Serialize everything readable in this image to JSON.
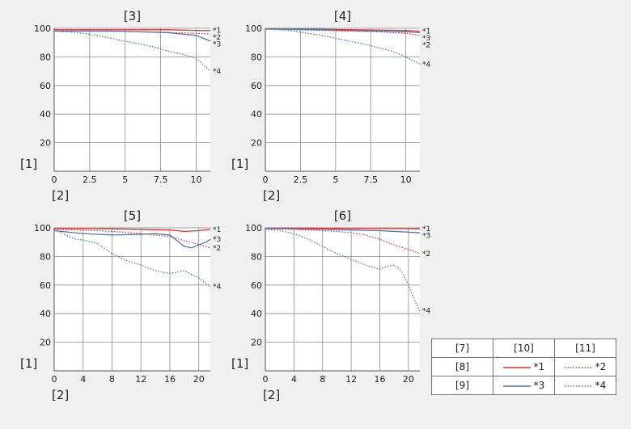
{
  "chart_data": [
    {
      "type": "line",
      "title": "[3]",
      "ylabel": "[1]",
      "xlabel": "[2]",
      "xlim": [
        0,
        11
      ],
      "ylim": [
        0,
        100
      ],
      "xticks": [
        0,
        2.5,
        5,
        7.5,
        10
      ],
      "xtick_labels": [
        "0",
        "2.5",
        "5",
        "7.5",
        "10"
      ],
      "yticks": [
        20,
        40,
        60,
        80,
        100
      ],
      "ytick_labels": [
        "20",
        "40",
        "60",
        "80",
        "100"
      ],
      "grid": true,
      "series": [
        {
          "name": "*1",
          "color": "#e03030",
          "dash": "solid",
          "x": [
            0,
            2,
            4,
            6,
            8,
            10,
            11
          ],
          "y": [
            99,
            99,
            99,
            99,
            99,
            98.5,
            98.5
          ]
        },
        {
          "name": "*2",
          "color": "#e03030",
          "dash": "dotted",
          "x": [
            0,
            2,
            4,
            6,
            8,
            10,
            11
          ],
          "y": [
            98,
            98,
            98,
            97.5,
            97,
            96.5,
            96
          ]
        },
        {
          "name": "*3",
          "color": "#4a73b0",
          "dash": "solid",
          "x": [
            0,
            2,
            4,
            6,
            8,
            9,
            10,
            11
          ],
          "y": [
            98,
            98,
            98,
            97.5,
            97,
            96,
            95,
            91
          ]
        },
        {
          "name": "*4",
          "color": "#4a73b0",
          "dash": "dotted",
          "x": [
            0,
            1,
            2,
            3,
            4,
            5,
            6,
            7,
            8,
            9,
            10,
            11
          ],
          "y": [
            98,
            97.5,
            96.5,
            95,
            93,
            91,
            89,
            87,
            84,
            82,
            79,
            70
          ]
        }
      ]
    },
    {
      "type": "line",
      "title": "[4]",
      "ylabel": "[1]",
      "xlabel": "[2]",
      "xlim": [
        0,
        11
      ],
      "ylim": [
        0,
        100
      ],
      "xticks": [
        0,
        2.5,
        5,
        7.5,
        10
      ],
      "xtick_labels": [
        "0",
        "2.5",
        "5",
        "7.5",
        "10"
      ],
      "yticks": [
        20,
        40,
        60,
        80,
        100
      ],
      "ytick_labels": [
        "20",
        "40",
        "60",
        "80",
        "100"
      ],
      "grid": true,
      "series": [
        {
          "name": "*1",
          "color": "#e03030",
          "dash": "solid",
          "x": [
            0,
            2,
            4,
            6,
            8,
            10,
            11
          ],
          "y": [
            99.5,
            99.5,
            99.3,
            99,
            98.8,
            98.5,
            98
          ]
        },
        {
          "name": "*2",
          "color": "#e03030",
          "dash": "dotted",
          "x": [
            0,
            2,
            4,
            6,
            8,
            10,
            11
          ],
          "y": [
            99.5,
            99,
            98.5,
            98,
            97.5,
            96.5,
            95
          ]
        },
        {
          "name": "*3",
          "color": "#4a73b0",
          "dash": "solid",
          "x": [
            0,
            2,
            4,
            6,
            8,
            10,
            11
          ],
          "y": [
            99.5,
            99.3,
            99,
            98.5,
            98,
            97.5,
            97
          ]
        },
        {
          "name": "*4",
          "color": "#4a73b0",
          "dash": "dotted",
          "x": [
            0,
            1,
            2,
            3,
            4,
            5,
            6,
            7,
            8,
            9,
            10,
            11
          ],
          "y": [
            99.5,
            99,
            98,
            96.5,
            95,
            93,
            91,
            89,
            86.5,
            84,
            80,
            75
          ]
        }
      ]
    },
    {
      "type": "line",
      "title": "[5]",
      "ylabel": "[1]",
      "xlabel": "[2]",
      "xlim": [
        0,
        21.6
      ],
      "ylim": [
        0,
        100
      ],
      "xticks": [
        0,
        4,
        8,
        12,
        16,
        20
      ],
      "xtick_labels": [
        "0",
        "4",
        "8",
        "12",
        "16",
        "20"
      ],
      "yticks": [
        20,
        40,
        60,
        80,
        100
      ],
      "ytick_labels": [
        "20",
        "40",
        "60",
        "80",
        "100"
      ],
      "grid": true,
      "series": [
        {
          "name": "*1",
          "color": "#e03030",
          "dash": "solid",
          "x": [
            0,
            4,
            8,
            12,
            16,
            18,
            20,
            21.6
          ],
          "y": [
            99.5,
            99.5,
            99.3,
            99,
            98.5,
            97.5,
            98,
            99
          ]
        },
        {
          "name": "*2",
          "color": "#e03030",
          "dash": "dotted",
          "x": [
            0,
            4,
            8,
            12,
            16,
            18,
            20,
            21.6
          ],
          "y": [
            99,
            98.5,
            97.5,
            96,
            94,
            91,
            88.5,
            86
          ]
        },
        {
          "name": "*3",
          "color": "#4a73b0",
          "dash": "solid",
          "x": [
            0,
            4,
            8,
            12,
            14,
            16,
            17,
            18,
            19,
            20,
            21,
            21.6
          ],
          "y": [
            98,
            96,
            95,
            95.5,
            96,
            95,
            91,
            87,
            86,
            88,
            90,
            92
          ]
        },
        {
          "name": "*4",
          "color": "#4a73b0",
          "dash": "dotted",
          "x": [
            0,
            2,
            3,
            4,
            6,
            8,
            10,
            12,
            14,
            16,
            18,
            20,
            21.6
          ],
          "y": [
            99,
            94,
            92,
            91.5,
            89,
            82,
            77,
            74,
            70,
            68,
            70,
            65,
            59
          ]
        }
      ]
    },
    {
      "type": "line",
      "title": "[6]",
      "ylabel": "[1]",
      "xlabel": "[2]",
      "xlim": [
        0,
        21.6
      ],
      "ylim": [
        0,
        100
      ],
      "xticks": [
        0,
        4,
        8,
        12,
        16,
        20
      ],
      "xtick_labels": [
        "0",
        "4",
        "8",
        "12",
        "16",
        "20"
      ],
      "yticks": [
        20,
        40,
        60,
        80,
        100
      ],
      "ytick_labels": [
        "20",
        "40",
        "60",
        "80",
        "100"
      ],
      "grid": true,
      "series": [
        {
          "name": "*1",
          "color": "#e03030",
          "dash": "solid",
          "x": [
            0,
            4,
            8,
            12,
            16,
            20,
            21.6
          ],
          "y": [
            99.8,
            99.8,
            99.7,
            99.6,
            99.5,
            99.4,
            99.3
          ]
        },
        {
          "name": "*2",
          "color": "#e03030",
          "dash": "dotted",
          "x": [
            0,
            4,
            8,
            10,
            12,
            14,
            16,
            18,
            20,
            21.6
          ],
          "y": [
            99.5,
            99,
            98,
            97.5,
            96.5,
            95,
            92,
            88,
            85,
            82
          ]
        },
        {
          "name": "*3",
          "color": "#4a73b0",
          "dash": "solid",
          "x": [
            0,
            4,
            8,
            12,
            16,
            20,
            21.6
          ],
          "y": [
            99.5,
            99.3,
            99,
            98.5,
            98,
            97,
            96.5
          ]
        },
        {
          "name": "*4",
          "color": "#4a73b0",
          "dash": "dotted",
          "x": [
            0,
            2,
            4,
            6,
            8,
            10,
            12,
            14,
            16,
            17,
            18,
            19,
            20,
            21,
            21.6
          ],
          "y": [
            99,
            98,
            96,
            92,
            87,
            82,
            78,
            74,
            71,
            73,
            74,
            70,
            60,
            48,
            42
          ]
        }
      ]
    }
  ],
  "legend_table": {
    "header": [
      "[7]",
      "[10]",
      "[11]"
    ],
    "rows": [
      {
        "label": "[8]",
        "entries": [
          {
            "name": "*1",
            "color": "#e03030",
            "dash": "solid"
          },
          {
            "name": "*2",
            "color": "#e03030",
            "dash": "dotted"
          }
        ]
      },
      {
        "label": "[9]",
        "entries": [
          {
            "name": "*3",
            "color": "#4a73b0",
            "dash": "solid"
          },
          {
            "name": "*4",
            "color": "#4a73b0",
            "dash": "dotted"
          }
        ]
      }
    ]
  }
}
